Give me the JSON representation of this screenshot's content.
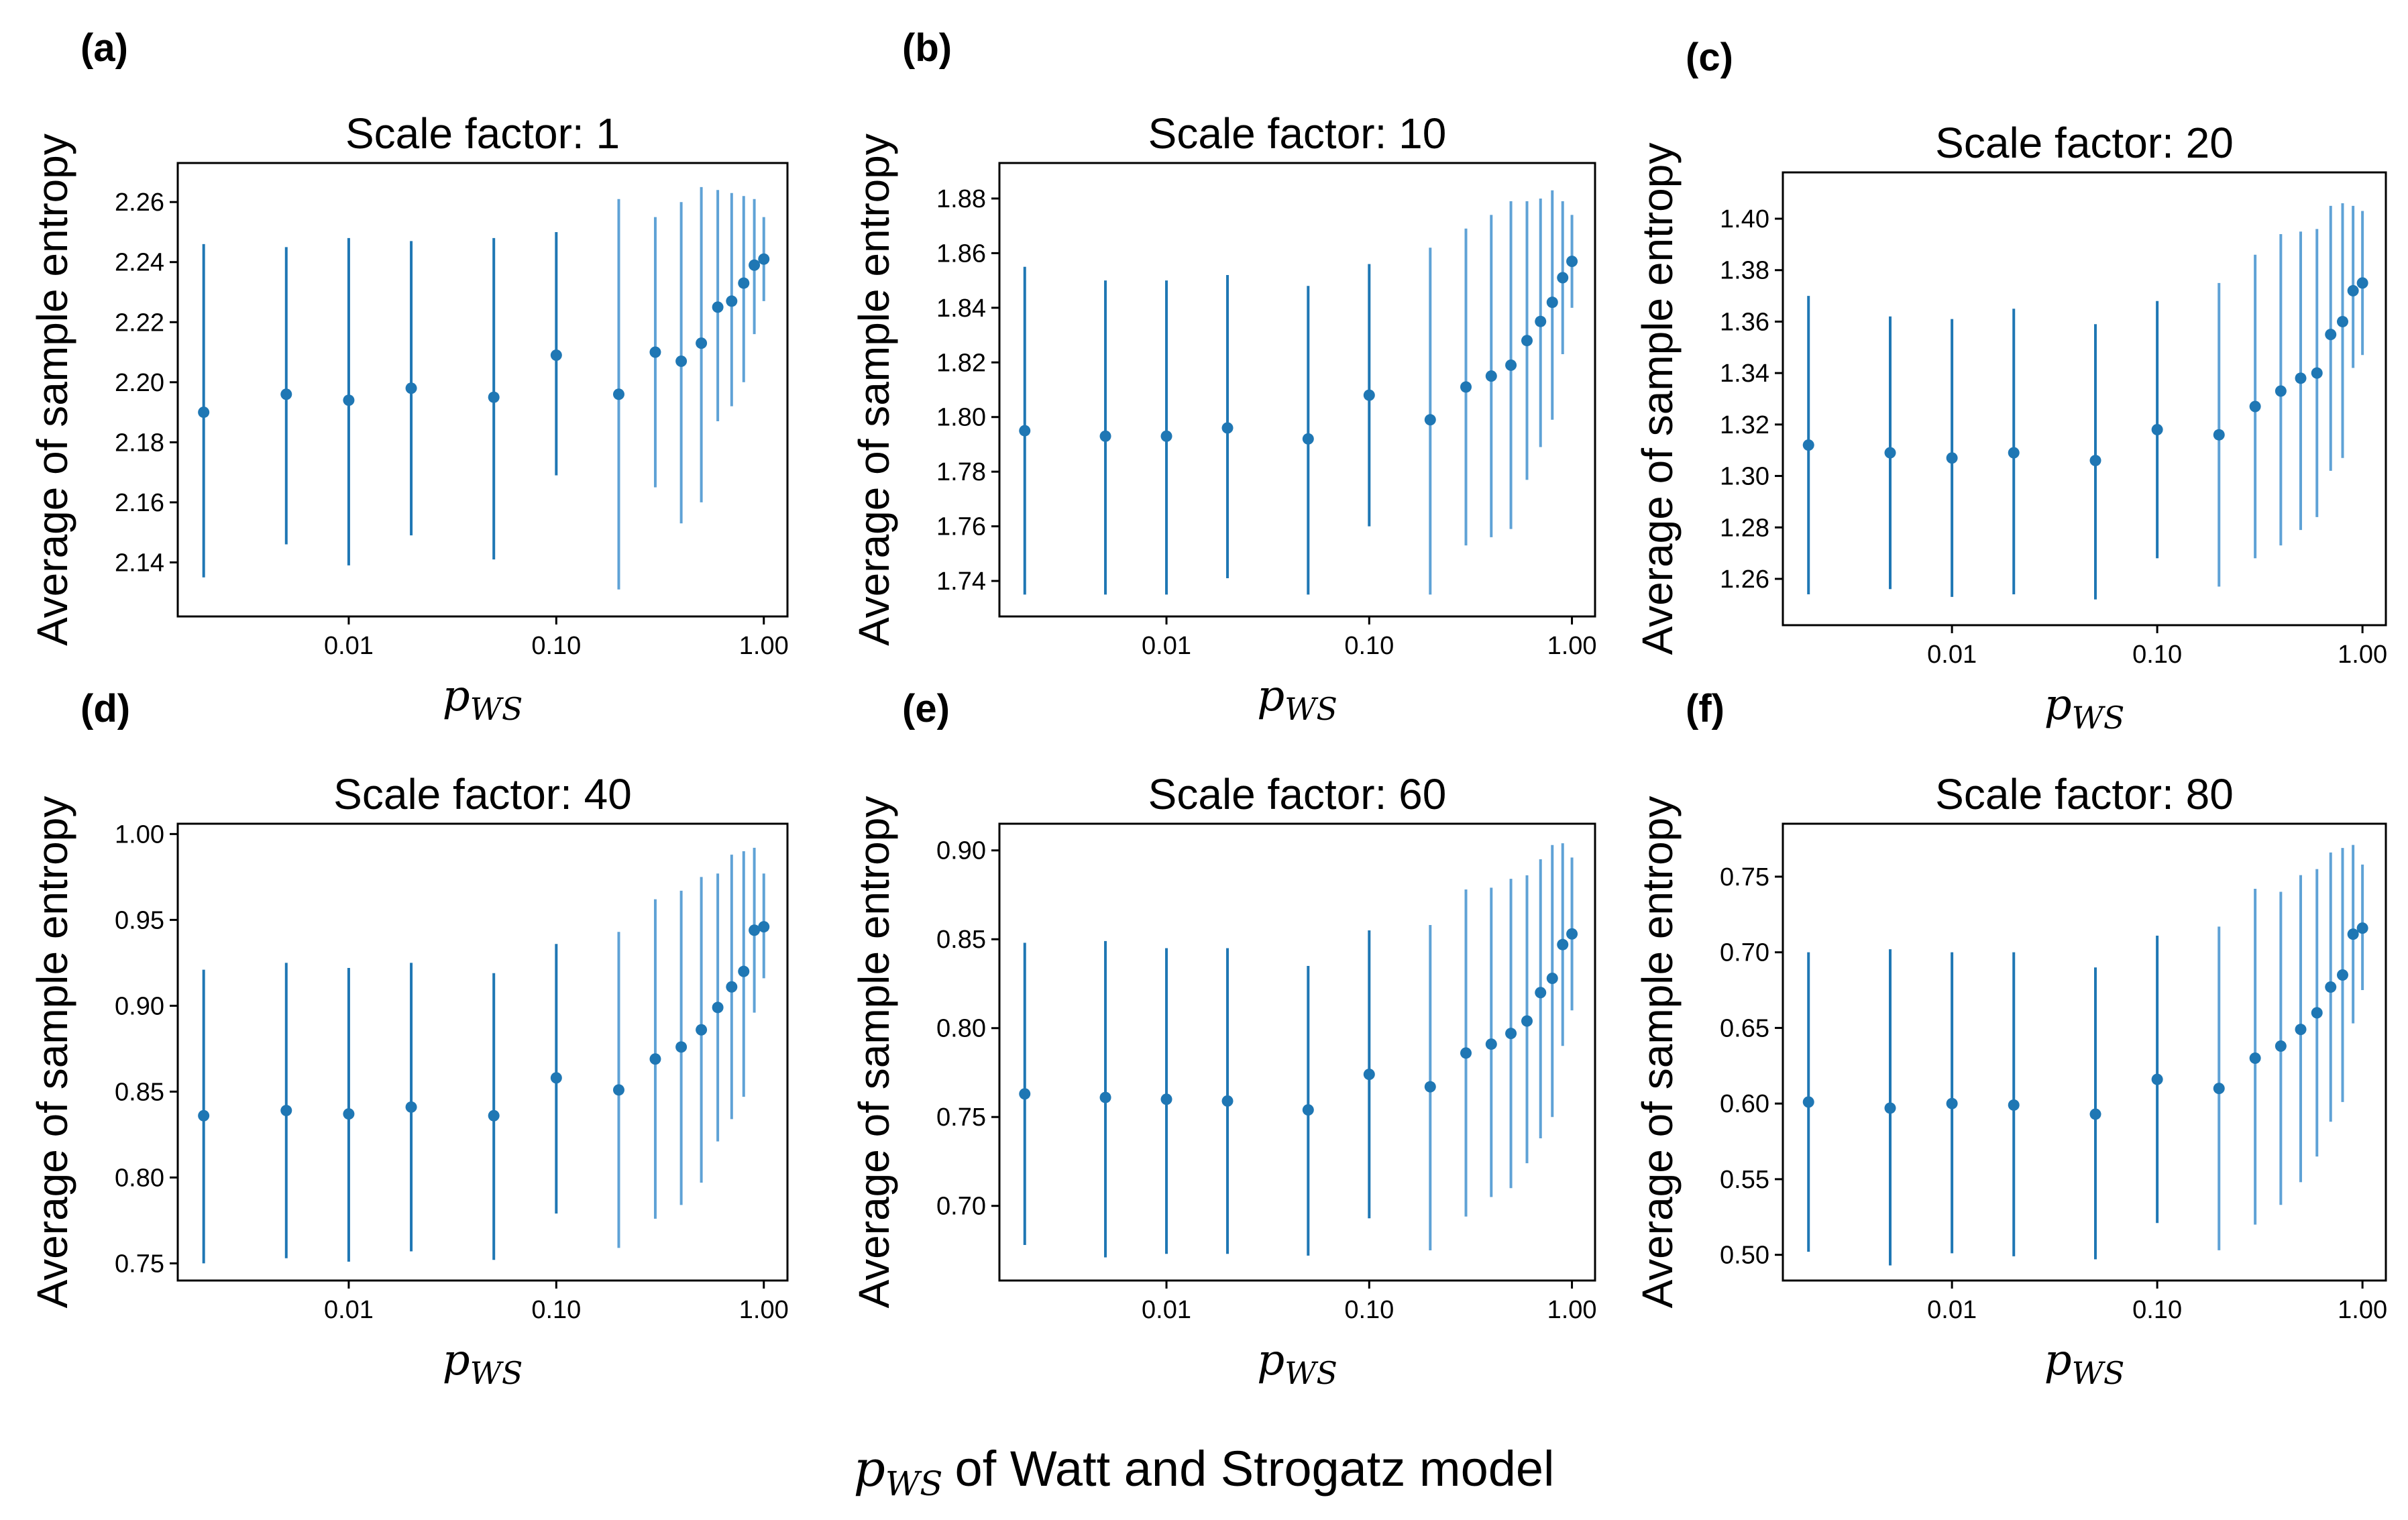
{
  "figure_xlabel": {
    "symbol": "p",
    "subscript": "WS",
    "text": "of Watt and Strogatz model"
  },
  "chart_data": [
    {
      "type": "scatter",
      "panel_label": "(a)",
      "title": "Scale factor: 1",
      "ylabel": "Average of sample entropy",
      "xlabel": {
        "symbol": "p",
        "subscript": "WS"
      },
      "x_scale": "log",
      "xlim": [
        0.0015,
        1.3
      ],
      "x_ticks": [
        0.01,
        0.1,
        1.0
      ],
      "x_tick_labels": [
        "0.01",
        "0.10",
        "1.00"
      ],
      "ylim": [
        2.122,
        2.273
      ],
      "y_ticks": [
        2.14,
        2.16,
        2.18,
        2.2,
        2.22,
        2.24,
        2.26
      ],
      "y_tick_labels": [
        "2.14",
        "2.16",
        "2.18",
        "2.20",
        "2.22",
        "2.24",
        "2.26"
      ],
      "x": [
        0.002,
        0.005,
        0.01,
        0.02,
        0.05,
        0.1,
        0.2,
        0.3,
        0.4,
        0.5,
        0.6,
        0.7,
        0.8,
        0.9,
        1.0
      ],
      "y": [
        2.19,
        2.196,
        2.194,
        2.198,
        2.195,
        2.209,
        2.196,
        2.21,
        2.207,
        2.213,
        2.225,
        2.227,
        2.233,
        2.239,
        2.241
      ],
      "err_low": [
        2.135,
        2.146,
        2.139,
        2.149,
        2.141,
        2.169,
        2.131,
        2.165,
        2.153,
        2.16,
        2.187,
        2.192,
        2.2,
        2.216,
        2.227
      ],
      "err_high": [
        2.246,
        2.245,
        2.248,
        2.247,
        2.248,
        2.25,
        2.261,
        2.255,
        2.26,
        2.265,
        2.264,
        2.263,
        2.262,
        2.261,
        2.255
      ]
    },
    {
      "type": "scatter",
      "panel_label": "(b)",
      "title": "Scale factor: 10",
      "ylabel": "Average of sample entropy",
      "xlabel": {
        "symbol": "p",
        "subscript": "WS"
      },
      "x_scale": "log",
      "xlim": [
        0.0015,
        1.3
      ],
      "x_ticks": [
        0.01,
        0.1,
        1.0
      ],
      "x_tick_labels": [
        "0.01",
        "0.10",
        "1.00"
      ],
      "ylim": [
        1.727,
        1.893
      ],
      "y_ticks": [
        1.74,
        1.76,
        1.78,
        1.8,
        1.82,
        1.84,
        1.86,
        1.88
      ],
      "y_tick_labels": [
        "1.74",
        "1.76",
        "1.78",
        "1.80",
        "1.82",
        "1.84",
        "1.86",
        "1.88"
      ],
      "x": [
        0.002,
        0.005,
        0.01,
        0.02,
        0.05,
        0.1,
        0.2,
        0.3,
        0.4,
        0.5,
        0.6,
        0.7,
        0.8,
        0.9,
        1.0
      ],
      "y": [
        1.795,
        1.793,
        1.793,
        1.796,
        1.792,
        1.808,
        1.799,
        1.811,
        1.815,
        1.819,
        1.828,
        1.835,
        1.842,
        1.851,
        1.857
      ],
      "err_low": [
        1.735,
        1.735,
        1.735,
        1.741,
        1.735,
        1.76,
        1.735,
        1.753,
        1.756,
        1.759,
        1.777,
        1.789,
        1.799,
        1.823,
        1.84
      ],
      "err_high": [
        1.855,
        1.85,
        1.85,
        1.852,
        1.848,
        1.856,
        1.862,
        1.869,
        1.874,
        1.879,
        1.879,
        1.88,
        1.883,
        1.879,
        1.874
      ]
    },
    {
      "type": "scatter",
      "panel_label": "(c)",
      "title": "Scale factor: 20",
      "ylabel": "Average of sample entropy",
      "xlabel": {
        "symbol": "p",
        "subscript": "WS"
      },
      "x_scale": "log",
      "xlim": [
        0.0015,
        1.3
      ],
      "x_ticks": [
        0.01,
        0.1,
        1.0
      ],
      "x_tick_labels": [
        "0.01",
        "0.10",
        "1.00"
      ],
      "ylim": [
        1.242,
        1.418
      ],
      "y_ticks": [
        1.26,
        1.28,
        1.3,
        1.32,
        1.34,
        1.36,
        1.38,
        1.4
      ],
      "y_tick_labels": [
        "1.26",
        "1.28",
        "1.30",
        "1.32",
        "1.34",
        "1.36",
        "1.38",
        "1.40"
      ],
      "x": [
        0.002,
        0.005,
        0.01,
        0.02,
        0.05,
        0.1,
        0.2,
        0.3,
        0.4,
        0.5,
        0.6,
        0.7,
        0.8,
        0.9,
        1.0
      ],
      "y": [
        1.312,
        1.309,
        1.307,
        1.309,
        1.306,
        1.318,
        1.316,
        1.327,
        1.333,
        1.338,
        1.34,
        1.355,
        1.36,
        1.372,
        1.375
      ],
      "err_low": [
        1.254,
        1.256,
        1.253,
        1.254,
        1.252,
        1.268,
        1.257,
        1.268,
        1.273,
        1.279,
        1.284,
        1.302,
        1.307,
        1.342,
        1.347
      ],
      "err_high": [
        1.37,
        1.362,
        1.361,
        1.365,
        1.359,
        1.368,
        1.375,
        1.386,
        1.394,
        1.395,
        1.396,
        1.405,
        1.406,
        1.405,
        1.403
      ]
    },
    {
      "type": "scatter",
      "panel_label": "(d)",
      "title": "Scale factor: 40",
      "ylabel": "Average of sample entropy",
      "xlabel": {
        "symbol": "p",
        "subscript": "WS"
      },
      "x_scale": "log",
      "xlim": [
        0.0015,
        1.3
      ],
      "x_ticks": [
        0.01,
        0.1,
        1.0
      ],
      "x_tick_labels": [
        "0.01",
        "0.10",
        "1.00"
      ],
      "ylim": [
        0.74,
        1.006
      ],
      "y_ticks": [
        0.75,
        0.8,
        0.85,
        0.9,
        0.95,
        1.0
      ],
      "y_tick_labels": [
        "0.75",
        "0.80",
        "0.85",
        "0.90",
        "0.95",
        "1.00"
      ],
      "x": [
        0.002,
        0.005,
        0.01,
        0.02,
        0.05,
        0.1,
        0.2,
        0.3,
        0.4,
        0.5,
        0.6,
        0.7,
        0.8,
        0.9,
        1.0
      ],
      "y": [
        0.836,
        0.839,
        0.837,
        0.841,
        0.836,
        0.858,
        0.851,
        0.869,
        0.876,
        0.886,
        0.899,
        0.911,
        0.92,
        0.944,
        0.946
      ],
      "err_low": [
        0.75,
        0.753,
        0.751,
        0.757,
        0.752,
        0.779,
        0.759,
        0.776,
        0.784,
        0.797,
        0.821,
        0.834,
        0.847,
        0.896,
        0.916
      ],
      "err_high": [
        0.921,
        0.925,
        0.922,
        0.925,
        0.919,
        0.936,
        0.943,
        0.962,
        0.967,
        0.975,
        0.977,
        0.988,
        0.99,
        0.992,
        0.977
      ]
    },
    {
      "type": "scatter",
      "panel_label": "(e)",
      "title": "Scale factor: 60",
      "ylabel": "Average of sample entropy",
      "xlabel": {
        "symbol": "p",
        "subscript": "WS"
      },
      "x_scale": "log",
      "xlim": [
        0.0015,
        1.3
      ],
      "x_ticks": [
        0.01,
        0.1,
        1.0
      ],
      "x_tick_labels": [
        "0.01",
        "0.10",
        "1.00"
      ],
      "ylim": [
        0.658,
        0.915
      ],
      "y_ticks": [
        0.7,
        0.75,
        0.8,
        0.85,
        0.9
      ],
      "y_tick_labels": [
        "0.70",
        "0.75",
        "0.80",
        "0.85",
        "0.90"
      ],
      "x": [
        0.002,
        0.005,
        0.01,
        0.02,
        0.05,
        0.1,
        0.2,
        0.3,
        0.4,
        0.5,
        0.6,
        0.7,
        0.8,
        0.9,
        1.0
      ],
      "y": [
        0.763,
        0.761,
        0.76,
        0.759,
        0.754,
        0.774,
        0.767,
        0.786,
        0.791,
        0.797,
        0.804,
        0.82,
        0.828,
        0.847,
        0.853
      ],
      "err_low": [
        0.678,
        0.671,
        0.673,
        0.673,
        0.672,
        0.693,
        0.675,
        0.694,
        0.705,
        0.71,
        0.724,
        0.738,
        0.75,
        0.79,
        0.81
      ],
      "err_high": [
        0.848,
        0.849,
        0.845,
        0.845,
        0.835,
        0.855,
        0.858,
        0.878,
        0.879,
        0.884,
        0.886,
        0.895,
        0.903,
        0.904,
        0.896
      ]
    },
    {
      "type": "scatter",
      "panel_label": "(f)",
      "title": "Scale factor: 80",
      "ylabel": "Average of sample entropy",
      "xlabel": {
        "symbol": "p",
        "subscript": "WS"
      },
      "x_scale": "log",
      "xlim": [
        0.0015,
        1.3
      ],
      "x_ticks": [
        0.01,
        0.1,
        1.0
      ],
      "x_tick_labels": [
        "0.01",
        "0.10",
        "1.00"
      ],
      "ylim": [
        0.483,
        0.785
      ],
      "y_ticks": [
        0.5,
        0.55,
        0.6,
        0.65,
        0.7,
        0.75
      ],
      "y_tick_labels": [
        "0.50",
        "0.55",
        "0.60",
        "0.65",
        "0.70",
        "0.75"
      ],
      "x": [
        0.002,
        0.005,
        0.01,
        0.02,
        0.05,
        0.1,
        0.2,
        0.3,
        0.4,
        0.5,
        0.6,
        0.7,
        0.8,
        0.9,
        1.0
      ],
      "y": [
        0.601,
        0.597,
        0.6,
        0.599,
        0.593,
        0.616,
        0.61,
        0.63,
        0.638,
        0.649,
        0.66,
        0.677,
        0.685,
        0.712,
        0.716
      ],
      "err_low": [
        0.502,
        0.493,
        0.501,
        0.499,
        0.497,
        0.521,
        0.503,
        0.52,
        0.533,
        0.548,
        0.565,
        0.588,
        0.601,
        0.653,
        0.675
      ],
      "err_high": [
        0.7,
        0.702,
        0.7,
        0.7,
        0.69,
        0.711,
        0.717,
        0.742,
        0.74,
        0.751,
        0.755,
        0.766,
        0.769,
        0.771,
        0.758
      ]
    }
  ]
}
